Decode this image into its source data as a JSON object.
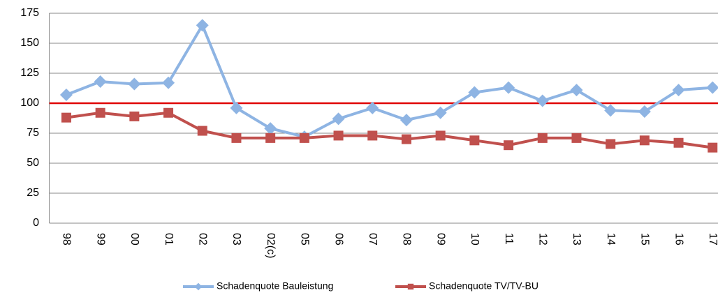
{
  "chart_data": {
    "type": "line",
    "categories": [
      "98",
      "99",
      "00",
      "01",
      "02",
      "03",
      "02(c)",
      "05",
      "06",
      "07",
      "08",
      "09",
      "10",
      "11",
      "12",
      "13",
      "14",
      "15",
      "16",
      "17"
    ],
    "series": [
      {
        "name": "Schadenquote Bauleistung",
        "color": "#8eb4e3",
        "marker": "diamond",
        "values": [
          107,
          118,
          116,
          117,
          165,
          96,
          79,
          72,
          87,
          96,
          86,
          92,
          109,
          113,
          102,
          111,
          94,
          93,
          111,
          113
        ]
      },
      {
        "name": "Schadenquote TV/TV-BU",
        "color": "#c0504d",
        "marker": "square",
        "values": [
          88,
          92,
          89,
          92,
          77,
          71,
          71,
          71,
          73,
          73,
          70,
          73,
          69,
          65,
          71,
          71,
          66,
          69,
          67,
          63
        ]
      }
    ],
    "reference_line": {
      "value": 100,
      "color": "#e00000"
    },
    "ylim": [
      0,
      175
    ],
    "yticks": [
      0,
      25,
      50,
      75,
      100,
      125,
      150,
      175
    ],
    "grid": true,
    "legend": "bottom"
  }
}
